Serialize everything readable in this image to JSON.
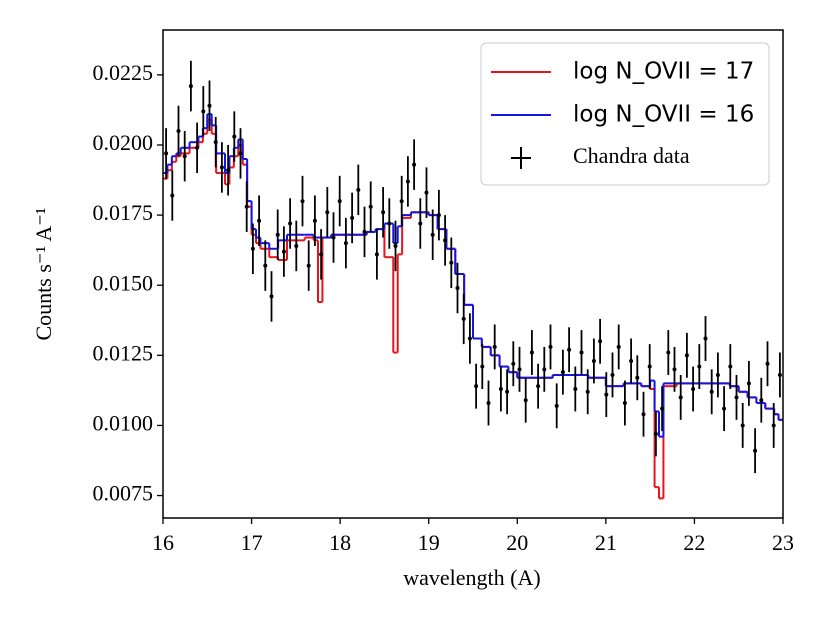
{
  "chart_data": {
    "type": "line",
    "xlabel": "wavelength (A)",
    "ylabel": "Counts s⁻¹ A⁻¹",
    "xlim": [
      16,
      23
    ],
    "ylim": [
      0.0067,
      0.0241
    ],
    "xticks": [
      16,
      17,
      18,
      19,
      20,
      21,
      22,
      23
    ],
    "yticks": [
      {
        "value": 0.0075,
        "label": "0.0075"
      },
      {
        "value": 0.01,
        "label": "0.0100"
      },
      0.0125,
      {
        "value": 0.015,
        "label": "0.0150"
      },
      0.0175,
      {
        "value": 0.02,
        "label": "0.0200"
      },
      0.0225
    ],
    "legend": "upper right",
    "x": [
      16.0,
      16.05,
      16.1,
      16.15,
      16.2,
      16.3,
      16.4,
      16.45,
      16.5,
      16.55,
      16.6,
      16.7,
      16.75,
      16.8,
      16.85,
      16.9,
      16.95,
      17.0,
      17.05,
      17.1,
      17.2,
      17.3,
      17.4,
      17.6,
      17.7,
      17.75,
      17.8,
      17.9,
      18.0,
      18.2,
      18.3,
      18.4,
      18.5,
      18.6,
      18.65,
      18.7,
      18.8,
      18.9,
      19.0,
      19.1,
      19.2,
      19.3,
      19.4,
      19.5,
      19.6,
      19.7,
      19.8,
      19.9,
      20.0,
      20.2,
      20.4,
      20.6,
      20.8,
      21.0,
      21.2,
      21.4,
      21.5,
      21.55,
      21.6,
      21.65,
      21.8,
      22.0,
      22.2,
      22.4,
      22.5,
      22.6,
      22.7,
      22.8,
      22.9,
      22.95
    ],
    "series": [
      {
        "name": "log N_OVII = 17",
        "color": "#e8141b",
        "type": "step",
        "values": [
          0.0188,
          0.0191,
          0.0194,
          0.0196,
          0.0197,
          0.0199,
          0.0201,
          0.0204,
          0.0209,
          0.0204,
          0.019,
          0.0186,
          0.0192,
          0.0196,
          0.02,
          0.0193,
          0.0178,
          0.0168,
          0.0165,
          0.0163,
          0.016,
          0.0159,
          0.0166,
          0.0167,
          0.0166,
          0.0144,
          0.0167,
          0.0168,
          0.0168,
          0.0168,
          0.0169,
          0.017,
          0.016,
          0.0126,
          0.0161,
          0.0174,
          0.0176,
          0.0176,
          0.0175,
          0.017,
          0.0163,
          0.0154,
          0.0143,
          0.0131,
          0.0128,
          0.0125,
          0.0121,
          0.0119,
          0.0117,
          0.0117,
          0.0118,
          0.0118,
          0.0117,
          0.0114,
          0.0115,
          0.0114,
          0.0113,
          0.0078,
          0.0074,
          0.0114,
          0.0115,
          0.0115,
          0.0115,
          0.0114,
          0.0112,
          0.011,
          0.0108,
          0.0106,
          0.0104,
          0.0102
        ]
      },
      {
        "name": "log N_OVII = 16",
        "color": "#1414e6",
        "type": "step",
        "values": [
          0.019,
          0.0193,
          0.0196,
          0.0197,
          0.0199,
          0.0201,
          0.0203,
          0.0206,
          0.0211,
          0.0207,
          0.0197,
          0.019,
          0.0196,
          0.0199,
          0.0202,
          0.0195,
          0.018,
          0.017,
          0.0167,
          0.0165,
          0.0163,
          0.0166,
          0.0168,
          0.0168,
          0.0167,
          0.0167,
          0.0167,
          0.0168,
          0.0168,
          0.0168,
          0.0169,
          0.017,
          0.0172,
          0.0165,
          0.0171,
          0.0175,
          0.0176,
          0.0176,
          0.0175,
          0.017,
          0.0163,
          0.0154,
          0.0143,
          0.0131,
          0.0128,
          0.0125,
          0.0121,
          0.0119,
          0.0117,
          0.0117,
          0.0118,
          0.0118,
          0.0117,
          0.0114,
          0.0115,
          0.0114,
          0.0116,
          0.0105,
          0.0096,
          0.0115,
          0.0115,
          0.0115,
          0.0115,
          0.0114,
          0.0112,
          0.011,
          0.0108,
          0.0106,
          0.0104,
          0.0102
        ]
      },
      {
        "name": "Chandra data",
        "color": "#000000",
        "type": "errorbar",
        "x": [
          16.035,
          16.105,
          16.175,
          16.245,
          16.315,
          16.385,
          16.455,
          16.525,
          16.595,
          16.665,
          16.735,
          16.805,
          16.875,
          16.945,
          17.015,
          17.085,
          17.155,
          17.225,
          17.295,
          17.365,
          17.435,
          17.505,
          17.575,
          17.645,
          17.715,
          17.785,
          17.855,
          17.925,
          17.995,
          18.065,
          18.135,
          18.205,
          18.275,
          18.345,
          18.415,
          18.485,
          18.555,
          18.625,
          18.695,
          18.765,
          18.835,
          18.905,
          18.975,
          19.045,
          19.115,
          19.185,
          19.255,
          19.325,
          19.395,
          19.465,
          19.535,
          19.605,
          19.675,
          19.745,
          19.815,
          19.885,
          19.955,
          20.025,
          20.095,
          20.165,
          20.235,
          20.305,
          20.375,
          20.445,
          20.515,
          20.585,
          20.655,
          20.725,
          20.795,
          20.865,
          20.935,
          21.005,
          21.075,
          21.145,
          21.215,
          21.285,
          21.355,
          21.425,
          21.495,
          21.565,
          21.635,
          21.705,
          21.775,
          21.845,
          21.915,
          21.985,
          22.055,
          22.125,
          22.195,
          22.265,
          22.335,
          22.405,
          22.475,
          22.545,
          22.615,
          22.685,
          22.755,
          22.825,
          22.895,
          22.965
        ],
        "values": [
          0.0197,
          0.0182,
          0.0205,
          0.0196,
          0.0221,
          0.0199,
          0.0212,
          0.0214,
          0.0201,
          0.0192,
          0.0191,
          0.0203,
          0.0197,
          0.0178,
          0.0163,
          0.0173,
          0.0157,
          0.0146,
          0.0168,
          0.0162,
          0.0172,
          0.0164,
          0.018,
          0.0157,
          0.0173,
          0.0161,
          0.0176,
          0.0167,
          0.018,
          0.0165,
          0.0174,
          0.0184,
          0.0169,
          0.0178,
          0.0161,
          0.0176,
          0.0172,
          0.0164,
          0.018,
          0.0187,
          0.0193,
          0.0172,
          0.0183,
          0.0168,
          0.0175,
          0.0166,
          0.0158,
          0.0149,
          0.0138,
          0.0131,
          0.0114,
          0.0121,
          0.0108,
          0.0128,
          0.0113,
          0.0112,
          0.0122,
          0.012,
          0.0109,
          0.0126,
          0.0114,
          0.012,
          0.0128,
          0.0107,
          0.0119,
          0.0127,
          0.0113,
          0.0126,
          0.0112,
          0.0123,
          0.013,
          0.0111,
          0.0118,
          0.0128,
          0.0108,
          0.0123,
          0.0117,
          0.0104,
          0.0121,
          0.0097,
          0.0106,
          0.0126,
          0.012,
          0.011,
          0.0125,
          0.0113,
          0.0121,
          0.0131,
          0.0112,
          0.0118,
          0.0106,
          0.0121,
          0.011,
          0.01,
          0.0115,
          0.0091,
          0.0109,
          0.0122,
          0.01,
          0.0118
        ],
        "errors": [
          0.0009,
          0.0009,
          0.0009,
          0.0009,
          0.0009,
          0.0009,
          0.0009,
          0.0009,
          0.0009,
          0.0009,
          0.0009,
          0.0009,
          0.0009,
          0.0009,
          0.0009,
          0.0009,
          0.0009,
          0.0009,
          0.0009,
          0.0009,
          0.0009,
          0.0009,
          0.0009,
          0.0009,
          0.0009,
          0.0009,
          0.0009,
          0.0009,
          0.0009,
          0.0009,
          0.0009,
          0.0009,
          0.0009,
          0.0009,
          0.0009,
          0.0009,
          0.0009,
          0.0009,
          0.0009,
          0.0009,
          0.0009,
          0.0009,
          0.0009,
          0.0009,
          0.0009,
          0.0009,
          0.0009,
          0.0009,
          0.0009,
          0.0009,
          0.0008,
          0.0008,
          0.0008,
          0.0008,
          0.0008,
          0.0008,
          0.0008,
          0.0008,
          0.0008,
          0.0008,
          0.0008,
          0.0008,
          0.0008,
          0.0008,
          0.0008,
          0.0008,
          0.0008,
          0.0008,
          0.0008,
          0.0008,
          0.0008,
          0.0008,
          0.0008,
          0.0008,
          0.0008,
          0.0008,
          0.0008,
          0.0008,
          0.0008,
          0.0008,
          0.0008,
          0.0008,
          0.0008,
          0.0008,
          0.0008,
          0.0008,
          0.0008,
          0.0008,
          0.0008,
          0.0008,
          0.0008,
          0.0008,
          0.0008,
          0.0008,
          0.0008,
          0.0008,
          0.0008,
          0.0008,
          0.0008,
          0.0008
        ]
      }
    ]
  }
}
